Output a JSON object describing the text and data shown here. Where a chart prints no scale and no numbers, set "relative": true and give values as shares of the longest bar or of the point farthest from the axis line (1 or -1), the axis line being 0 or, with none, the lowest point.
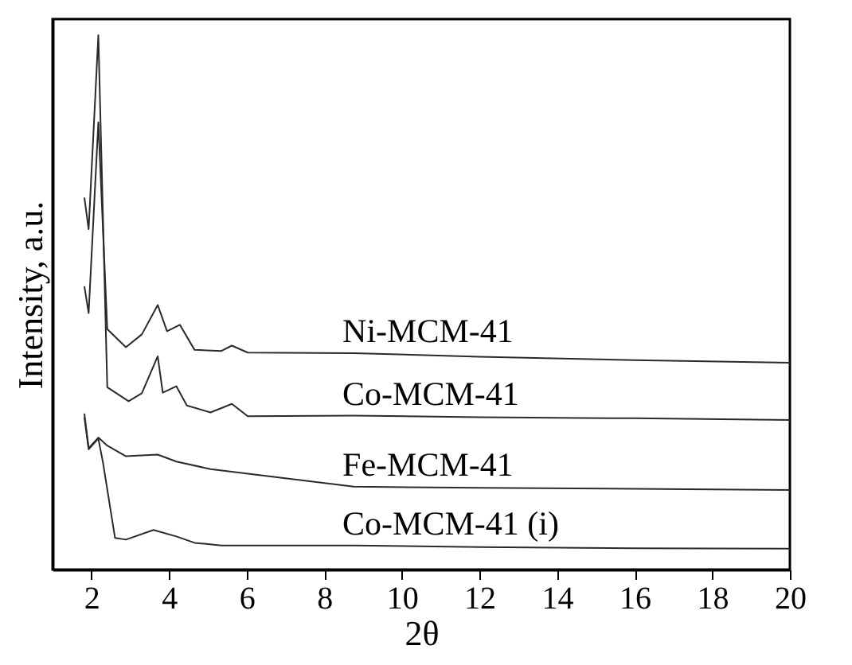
{
  "chart_data": {
    "type": "line",
    "relative": true,
    "xlabel": "2θ",
    "ylabel": "Intensity, a.u.",
    "xlim": [
      1,
      20
    ],
    "xticks": [
      2,
      4,
      6,
      8,
      10,
      12,
      14,
      16,
      18,
      20
    ],
    "grid": false,
    "marker": "none",
    "line_style": "solid",
    "series": [
      {
        "name": "Ni-MCM-41",
        "color": "#2a2a2a",
        "x": [
          1.82,
          1.93,
          2.18,
          2.41,
          2.89,
          3.3,
          3.71,
          3.95,
          4.28,
          4.66,
          5.35,
          5.62,
          6.03,
          8.76,
          12,
          16,
          20
        ],
        "values": [
          0.53,
          0.48,
          0.837,
          0.45,
          0.416,
          0.44,
          0.495,
          0.446,
          0.458,
          0.411,
          0.409,
          0.419,
          0.406,
          0.405,
          0.398,
          0.392,
          0.387
        ]
      },
      {
        "name": "Co-MCM-41",
        "color": "#2a2a2a",
        "x": [
          1.82,
          1.93,
          2.18,
          2.41,
          2.96,
          3.3,
          3.71,
          3.84,
          4.19,
          4.46,
          5.07,
          5.62,
          6.03,
          8.76,
          12,
          16,
          20
        ],
        "values": [
          0.696,
          0.637,
          1.0,
          0.341,
          0.315,
          0.33,
          0.399,
          0.331,
          0.343,
          0.307,
          0.294,
          0.31,
          0.287,
          0.288,
          0.285,
          0.283,
          0.28
        ]
      },
      {
        "name": "Fe-MCM-41",
        "color": "#2a2a2a",
        "x": [
          1.82,
          1.93,
          2.18,
          2.41,
          2.89,
          3.71,
          4.19,
          5.07,
          8.76,
          12,
          16,
          20
        ],
        "values": [
          0.292,
          0.227,
          0.247,
          0.232,
          0.212,
          0.215,
          0.202,
          0.188,
          0.155,
          0.153,
          0.151,
          0.149
        ]
      },
      {
        "name": "Co-MCM-41 (i)",
        "color": "#2a2a2a",
        "x": [
          1.82,
          1.93,
          2.18,
          2.3,
          2.61,
          2.89,
          3.6,
          4.19,
          4.66,
          5.35,
          8.76,
          12,
          16,
          20
        ],
        "values": [
          0.285,
          0.225,
          0.245,
          0.2,
          0.059,
          0.056,
          0.074,
          0.062,
          0.05,
          0.045,
          0.045,
          0.042,
          0.04,
          0.039
        ]
      }
    ]
  }
}
